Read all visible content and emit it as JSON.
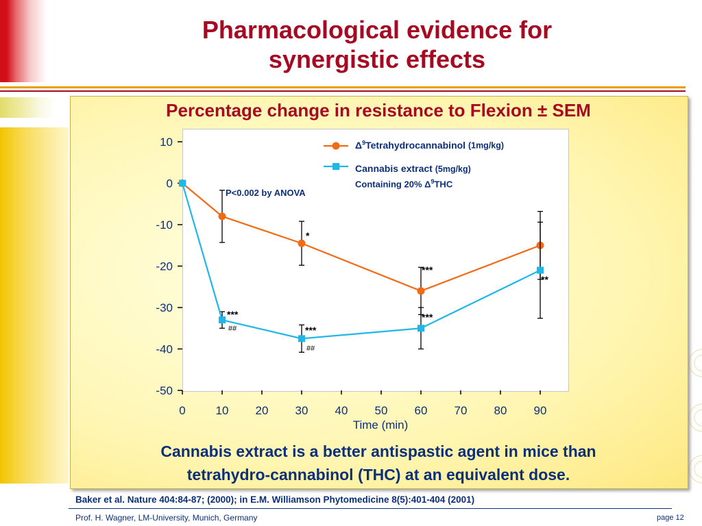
{
  "slide": {
    "title_line1": "Pharmacological evidence for",
    "title_line2": "synergistic effects",
    "panel_title": "Percentage change in resistance to Flexion ± SEM",
    "conclusion_line1": "Cannabis extract is a better antispastic agent in mice than",
    "conclusion_line2": "tetrahydro-cannabinol (THC) at an equivalent dose.",
    "reference": "Baker et al. Nature 404:84-87; (2000); in E.M. Williamson Phytomedicine 8(5):401-404 (2001)",
    "author": "Prof. H. Wagner, LM-University, Munich, Germany",
    "page": "page 12"
  },
  "chart_data": {
    "type": "line",
    "xlabel": "Time (min)",
    "ylabel": "",
    "xlim": [
      0,
      95
    ],
    "ylim": [
      -50,
      10
    ],
    "x_ticks": [
      "0",
      "10",
      "20",
      "30",
      "40",
      "50",
      "60",
      "70",
      "80",
      "90"
    ],
    "y_ticks": [
      "10",
      "0",
      "-10",
      "-20",
      "-30",
      "-40",
      "-50"
    ],
    "annotation": "P<0.002 by ANOVA",
    "legend": {
      "thc_main": "Δ9Tetrahydrocannabinol",
      "thc_dose": "(1mg/kg)",
      "extract_main": "Cannabis extract",
      "extract_dose": "(5mg/kg)",
      "extract_note": "Containing 20% Δ9THC"
    },
    "series": [
      {
        "name": "Δ9Tetrahydrocannabinol (1mg/kg)",
        "color": "#f26a14",
        "marker": "circle",
        "x": [
          0,
          10,
          30,
          60,
          90
        ],
        "y": [
          0,
          -8,
          -14.5,
          -26,
          -15
        ],
        "err": [
          0,
          6.3,
          5.3,
          5.7,
          8.2
        ]
      },
      {
        "name": "Cannabis extract (5mg/kg) Containing 20% Δ9THC",
        "color": "#1fb6e8",
        "marker": "square",
        "x": [
          0,
          10,
          30,
          60,
          90
        ],
        "y": [
          0,
          -33,
          -37.5,
          -35,
          -21
        ],
        "err": [
          0,
          2,
          3.3,
          5,
          11.6
        ]
      }
    ],
    "significance": {
      "thc_30": "*",
      "thc_60": "***",
      "ext_10": "***",
      "ext_10_hash": "##",
      "ext_30": "***",
      "ext_30_hash": "##",
      "ext_60": "***",
      "ext_90": "**"
    }
  },
  "colors": {
    "title": "#a50a22",
    "text_blue": "#0c2f79",
    "thc_line": "#f26a14",
    "extract_line": "#1fb6e8"
  }
}
